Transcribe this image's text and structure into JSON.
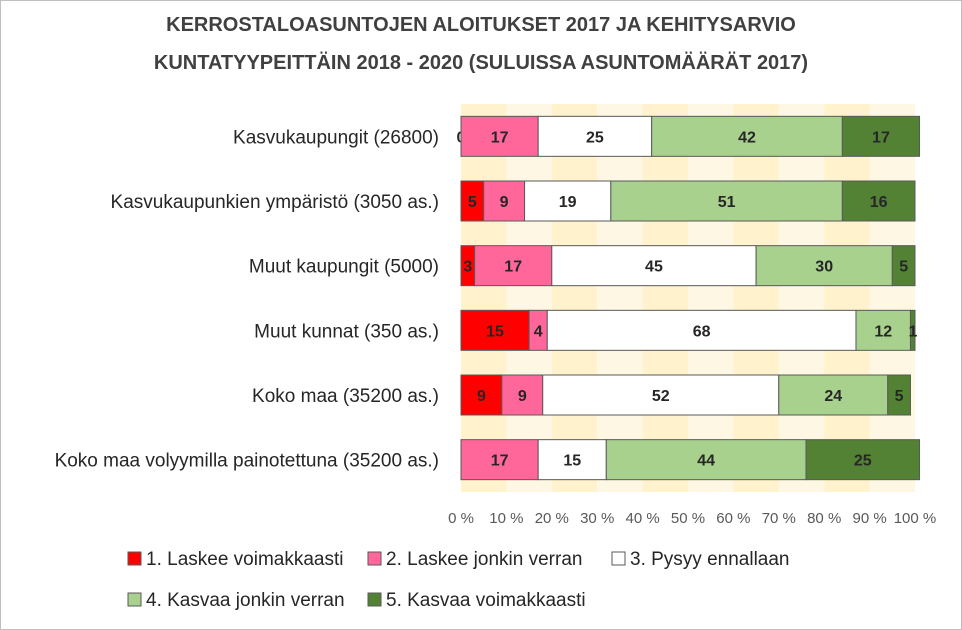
{
  "chart_data": {
    "type": "bar",
    "orientation": "horizontal",
    "stacked": "percent",
    "title": "KERROSTALOASUNTOJEN ALOITUKSET 2017 JA KEHITYSARVIO KUNTATYYPEITTÄIN 2018 - 2020 (SULUISSA ASUNTOMÄÄRÄT 2017)",
    "title_lines": [
      "KERROSTALOASUNTOJEN ALOITUKSET 2017 JA KEHITYSARVIO",
      "KUNTATYYPEITTÄIN 2018 - 2020 (SULUISSA ASUNTOMÄÄRÄT 2017)"
    ],
    "categories": [
      "Kasvukaupungit (26800)",
      "Kasvukaupunkien ympäristö (3050 as.)",
      "Muut kaupungit (5000)",
      "Muut kunnat (350 as.)",
      "Koko maa (35200 as.)",
      "Koko maa volyymilla painotettuna (35200 as.)"
    ],
    "series": [
      {
        "name": "1. Laskee voimakkaasti",
        "color": "#ff0000",
        "values": [
          0,
          5,
          3,
          15,
          9,
          0
        ],
        "labels": [
          "0",
          "5",
          "3",
          "15",
          "9",
          ""
        ]
      },
      {
        "name": "2. Laskee jonkin verran",
        "color": "#ff6699",
        "values": [
          17,
          9,
          17,
          4,
          9,
          17
        ],
        "labels": [
          "17",
          "9",
          "17",
          "4",
          "9",
          "17"
        ]
      },
      {
        "name": "3. Pysyy ennallaan",
        "color": "#ffffff",
        "values": [
          25,
          19,
          45,
          68,
          52,
          15
        ],
        "labels": [
          "25",
          "19",
          "45",
          "68",
          "52",
          "15"
        ]
      },
      {
        "name": "4. Kasvaa jonkin verran",
        "color": "#a9d18e",
        "values": [
          42,
          51,
          30,
          12,
          24,
          44
        ],
        "labels": [
          "42",
          "51",
          "30",
          "12",
          "24",
          "44"
        ]
      },
      {
        "name": "5. Kasvaa voimakkaasti",
        "color": "#548235",
        "values": [
          17,
          16,
          5,
          1,
          5,
          25
        ],
        "labels": [
          "17",
          "16",
          "5",
          "1",
          "5",
          "25"
        ]
      }
    ],
    "x_ticks": [
      "0 %",
      "10 %",
      "20 %",
      "30 %",
      "40 %",
      "50 %",
      "60 %",
      "70 %",
      "80 %",
      "90 %",
      "100 %"
    ],
    "xlim": [
      0,
      100
    ],
    "grid": "vertical bands",
    "plot_background": "#fff2cc",
    "legend_position": "bottom"
  }
}
